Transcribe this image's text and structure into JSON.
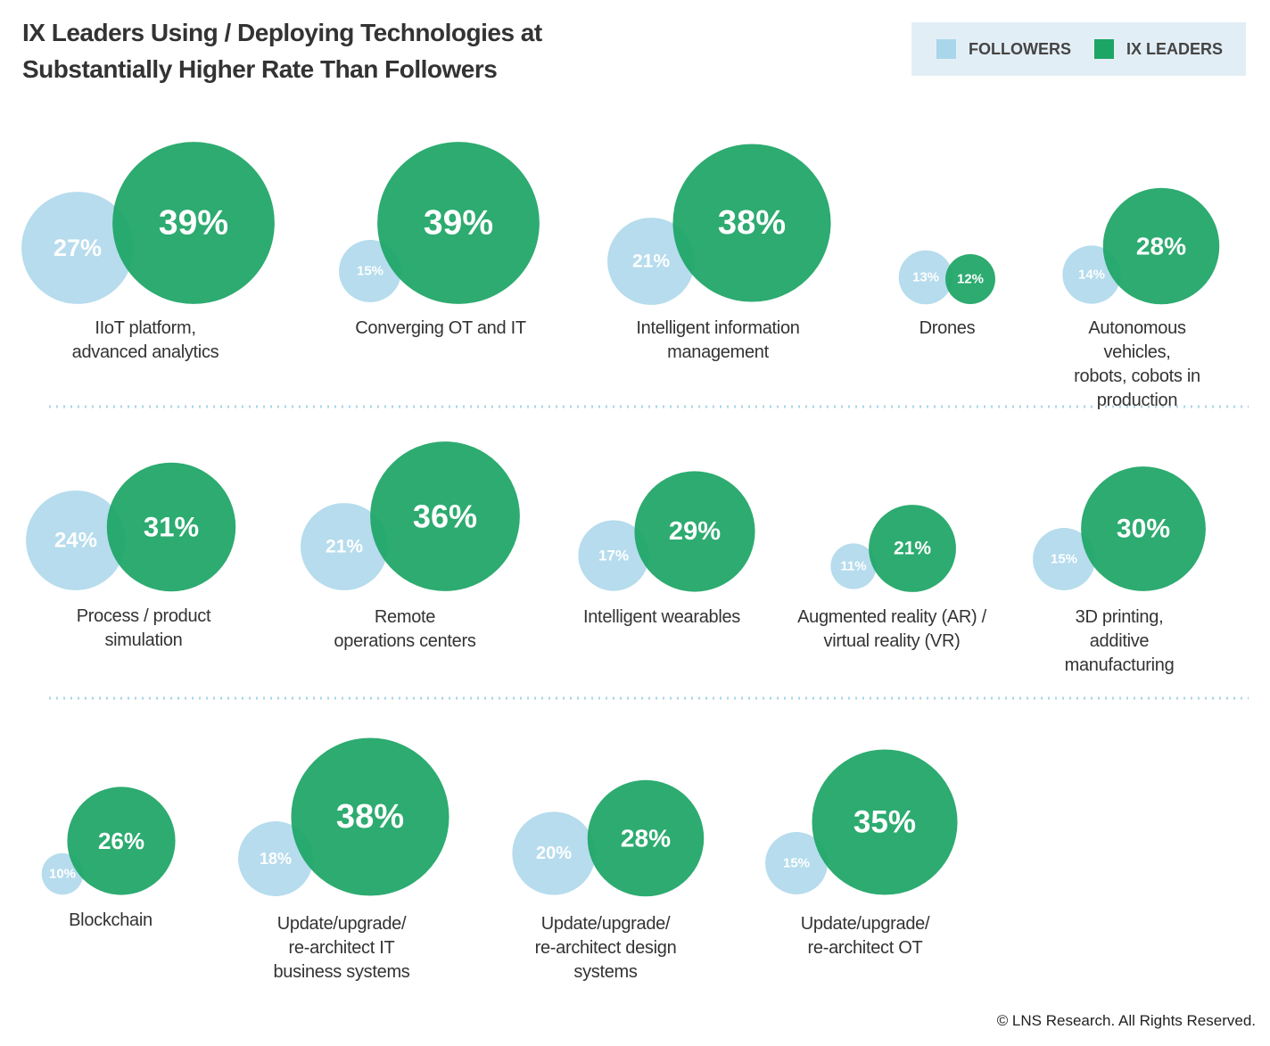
{
  "chart_data": {
    "type": "bubble",
    "title": "IX Leaders Using / Deploying Technologies at\nSubstantially Higher Rate Than Followers",
    "source": "© LNS Research. All Rights Reserved.",
    "categories": [
      "IIoT platform,\nadvanced analytics",
      "Converging OT and IT",
      "Intelligent information\nmanagement",
      "Drones",
      "Autonomous vehicles,\nrobots, cobots in production",
      "Process / product\nsimulation",
      "Remote\noperations centers",
      "Intelligent wearables",
      "Augmented reality (AR) /\nvirtual reality (VR)",
      "3D printing, additive\nmanufacturing",
      "Blockchain",
      "Update/upgrade/\nre-architect IT\nbusiness systems",
      "Update/upgrade/\nre-architect design\nsystems",
      "Update/upgrade/\nre-architect OT"
    ],
    "series": [
      {
        "name": "FOLLOWERS",
        "color": "#a9d6ea",
        "values": [
          27,
          15,
          21,
          13,
          14,
          24,
          21,
          17,
          11,
          15,
          10,
          18,
          20,
          15
        ],
        "value_labels": [
          "27%",
          "15%",
          "21%",
          "13%",
          "14%",
          "24%",
          "21%",
          "17%",
          "11%",
          "15%",
          "10%",
          "18%",
          "20%",
          "15%"
        ]
      },
      {
        "name": "IX LEADERS",
        "color": "#1da565",
        "values": [
          39,
          39,
          38,
          12,
          28,
          31,
          36,
          29,
          21,
          30,
          26,
          38,
          28,
          35
        ],
        "value_labels": [
          "39%",
          "39%",
          "38%",
          "12%",
          "28%",
          "31%",
          "36%",
          "29%",
          "21%",
          "30%",
          "26%",
          "38%",
          "28%",
          "35%"
        ]
      }
    ]
  }
}
